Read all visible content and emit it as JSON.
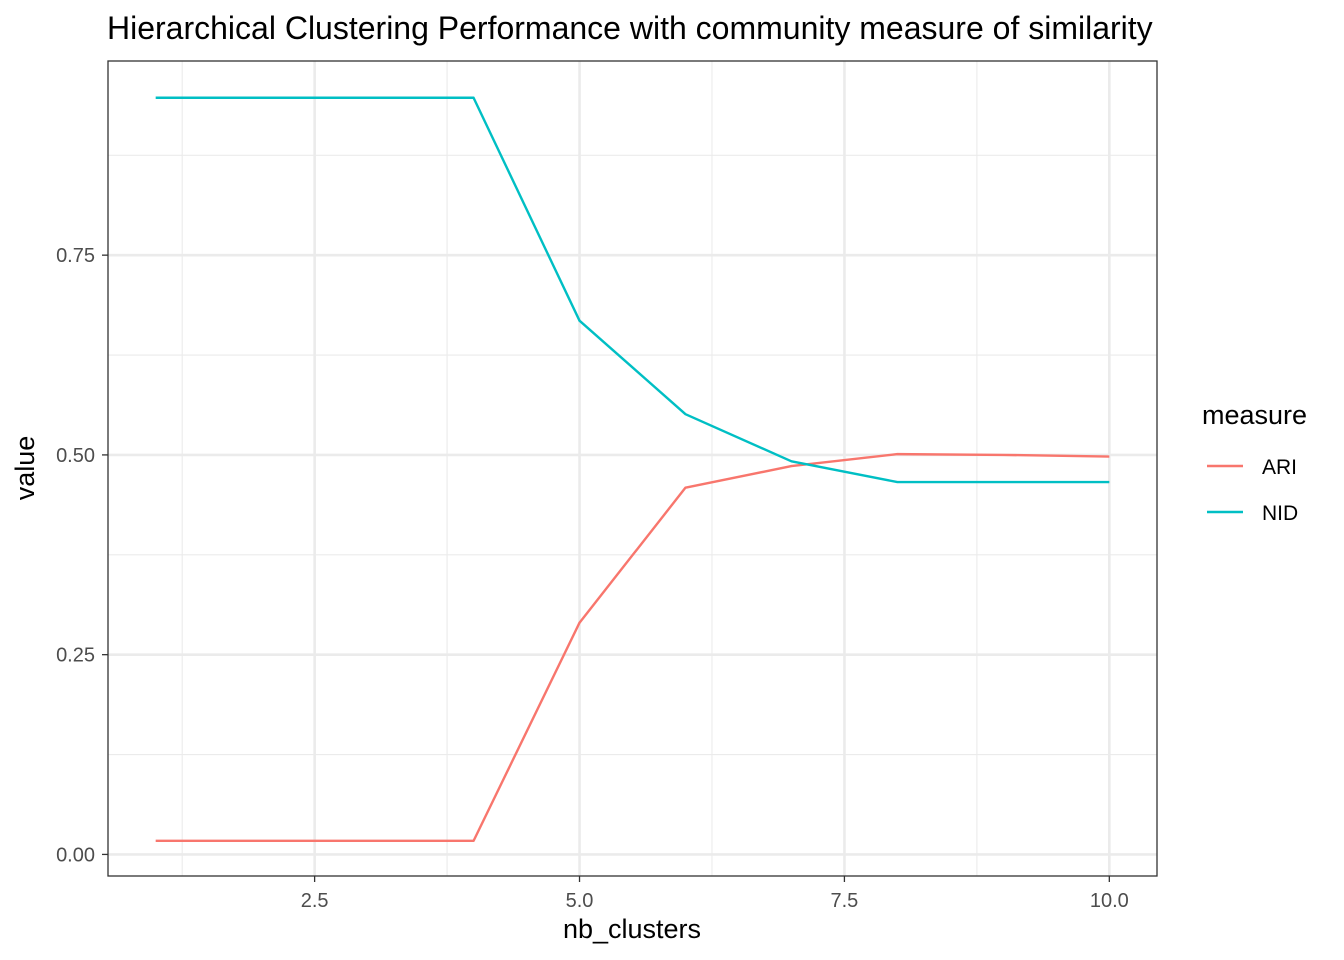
{
  "chart_data": {
    "type": "line",
    "title": "Hierarchical Clustering Performance with community measure of similarity",
    "xlabel": "nb_clusters",
    "ylabel": "value",
    "x": [
      1,
      2,
      3,
      4,
      5,
      6,
      7,
      8,
      9,
      10
    ],
    "series": [
      {
        "name": "ARI",
        "color": "#F8766D",
        "values": [
          0.017,
          0.017,
          0.017,
          0.017,
          0.29,
          0.459,
          0.486,
          0.501,
          0.5,
          0.498
        ]
      },
      {
        "name": "NID",
        "color": "#00BFC4",
        "values": [
          0.947,
          0.947,
          0.947,
          0.947,
          0.668,
          0.551,
          0.492,
          0.466,
          0.466,
          0.466
        ]
      }
    ],
    "xlim": [
      0.55,
      10.45
    ],
    "ylim": [
      -0.027,
      0.993
    ],
    "x_ticks": [
      2.5,
      5.0,
      7.5,
      10.0
    ],
    "x_tick_labels": [
      "2.5",
      "5.0",
      "7.5",
      "10.0"
    ],
    "y_ticks": [
      0.0,
      0.25,
      0.5,
      0.75
    ],
    "y_tick_labels": [
      "0.00",
      "0.25",
      "0.50",
      "0.75"
    ],
    "grid": true,
    "legend": {
      "title": "measure",
      "placement": "right",
      "entries": [
        "ARI",
        "NID"
      ]
    }
  }
}
